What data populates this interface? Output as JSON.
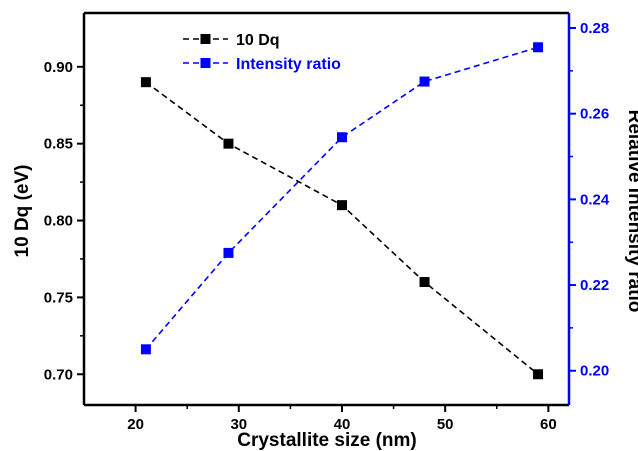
{
  "chart_data": {
    "type": "line",
    "x": [
      21,
      29,
      40,
      48,
      59
    ],
    "xlabel": "Crystallite size (nm)",
    "xlim": [
      15,
      62
    ],
    "xticks": [
      20,
      30,
      40,
      50,
      60
    ],
    "y_left": {
      "label": "10 Dq (eV)",
      "lim": [
        0.68,
        0.935
      ],
      "ticks": [
        "0.70",
        "0.75",
        "0.80",
        "0.85",
        "0.90"
      ],
      "color": "#000000"
    },
    "y_right": {
      "label": "Relative Intensity ratio",
      "lim": [
        0.192,
        0.2835
      ],
      "ticks": [
        "0.20",
        "0.22",
        "0.24",
        "0.26",
        "0.28"
      ],
      "color": "#0000ff"
    },
    "series": [
      {
        "name": "10 Dq",
        "axis": "left",
        "color": "#000000",
        "values": [
          0.89,
          0.85,
          0.81,
          0.76,
          0.7
        ]
      },
      {
        "name": "Intensity ratio",
        "axis": "right",
        "color": "#0000ff",
        "values": [
          0.205,
          0.2275,
          0.2545,
          0.2675,
          0.2755
        ]
      }
    ],
    "legend": "top-center",
    "grid": false
  }
}
